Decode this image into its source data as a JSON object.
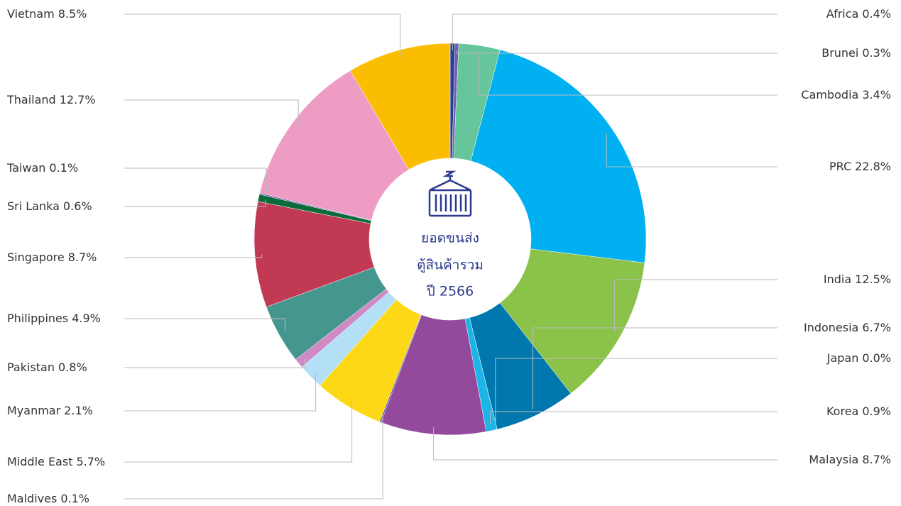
{
  "chart_data": {
    "type": "donut",
    "categories": [
      "Africa",
      "Brunei",
      "Cambodia",
      "PRC",
      "India",
      "Indonesia",
      "Japan",
      "Korea",
      "Malaysia",
      "Maldives",
      "Middle East",
      "Myanmar",
      "Pakistan",
      "Philippines",
      "Singapore",
      "Sri Lanka",
      "Taiwan",
      "Thailand",
      "Vietnam"
    ],
    "values": [
      0.4,
      0.3,
      3.4,
      22.8,
      12.5,
      6.7,
      0.0,
      0.9,
      8.7,
      0.1,
      5.7,
      2.1,
      0.8,
      4.9,
      8.7,
      0.6,
      0.1,
      12.7,
      8.5
    ],
    "value_labels": [
      "0.4%",
      "0.3%",
      "3.4%",
      "22.8%",
      "12.5%",
      "6.7%",
      "0.0%",
      "0.9%",
      "8.7%",
      "0.1%",
      "5.7%",
      "2.1%",
      "0.8%",
      "4.9%",
      "8.7%",
      "0.6%",
      "0.1%",
      "12.7%",
      "8.5%"
    ],
    "colors": [
      "#2e3f93",
      "#6a5fb0",
      "#66c59a",
      "#00b0f0",
      "#8bc34a",
      "#0078ad",
      "#555555",
      "#1bb5e8",
      "#944a9c",
      "#2a3b8f",
      "#fcd817",
      "#b3e0f7",
      "#cf8ac6",
      "#45968f",
      "#c23953",
      "#0c6b3a",
      "#5b4ea0",
      "#ee9cc4",
      "#fbbd00"
    ],
    "center_text": [
      "ยอดขนส่ง",
      "ตู้สินค้ารวม",
      "ปี 2566"
    ]
  }
}
